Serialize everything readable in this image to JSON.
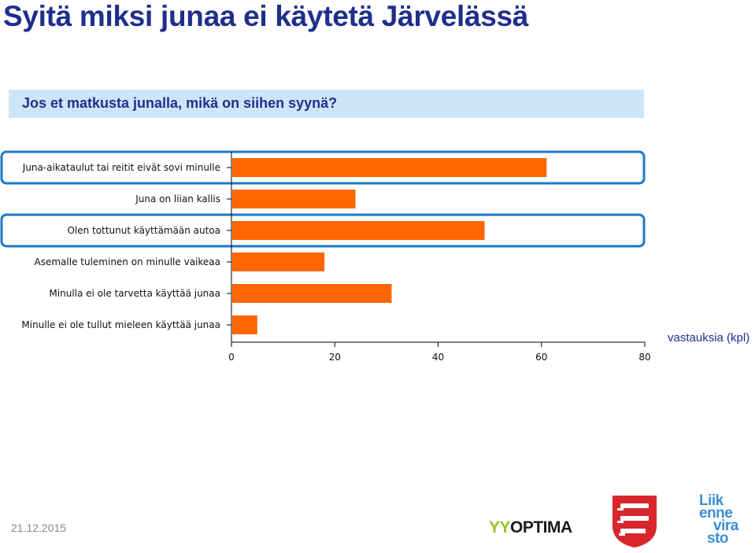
{
  "page": {
    "title": "Syitä miksi junaa ei käytetä Järvelässä",
    "question": "Jos et matkusta junalla, mikä on siihen syynä?",
    "unit_label": "vastauksia (kpl)",
    "date": "21.12.2015"
  },
  "logos": {
    "optima_prefix": "YY",
    "optima_text": "OPTIMA",
    "liikennevirasto_lines": [
      "Liik",
      "enne",
      "vira",
      "sto"
    ]
  },
  "colors": {
    "bar": "#ff6600",
    "highlight": "#1e78c8",
    "title": "#1f2f8c",
    "question_bg": "#cde5f8"
  },
  "chart_data": {
    "type": "bar",
    "orientation": "horizontal",
    "categories": [
      "Juna-aikataulut tai reitit eivät sovi minulle",
      "Juna on liian kallis",
      "Olen tottunut käyttämään autoa",
      "Asemalle tuleminen on minulle vaikeaa",
      "Minulla ei ole tarvetta käyttää junaa",
      "Minulle ei ole tullut mieleen käyttää junaa"
    ],
    "values": [
      61,
      24,
      49,
      18,
      31,
      5
    ],
    "xlim": [
      0,
      80
    ],
    "xticks": [
      0,
      20,
      40,
      60,
      80
    ],
    "xlabel": "vastauksia (kpl)",
    "highlighted_categories": [
      0,
      2
    ],
    "grid": false
  }
}
